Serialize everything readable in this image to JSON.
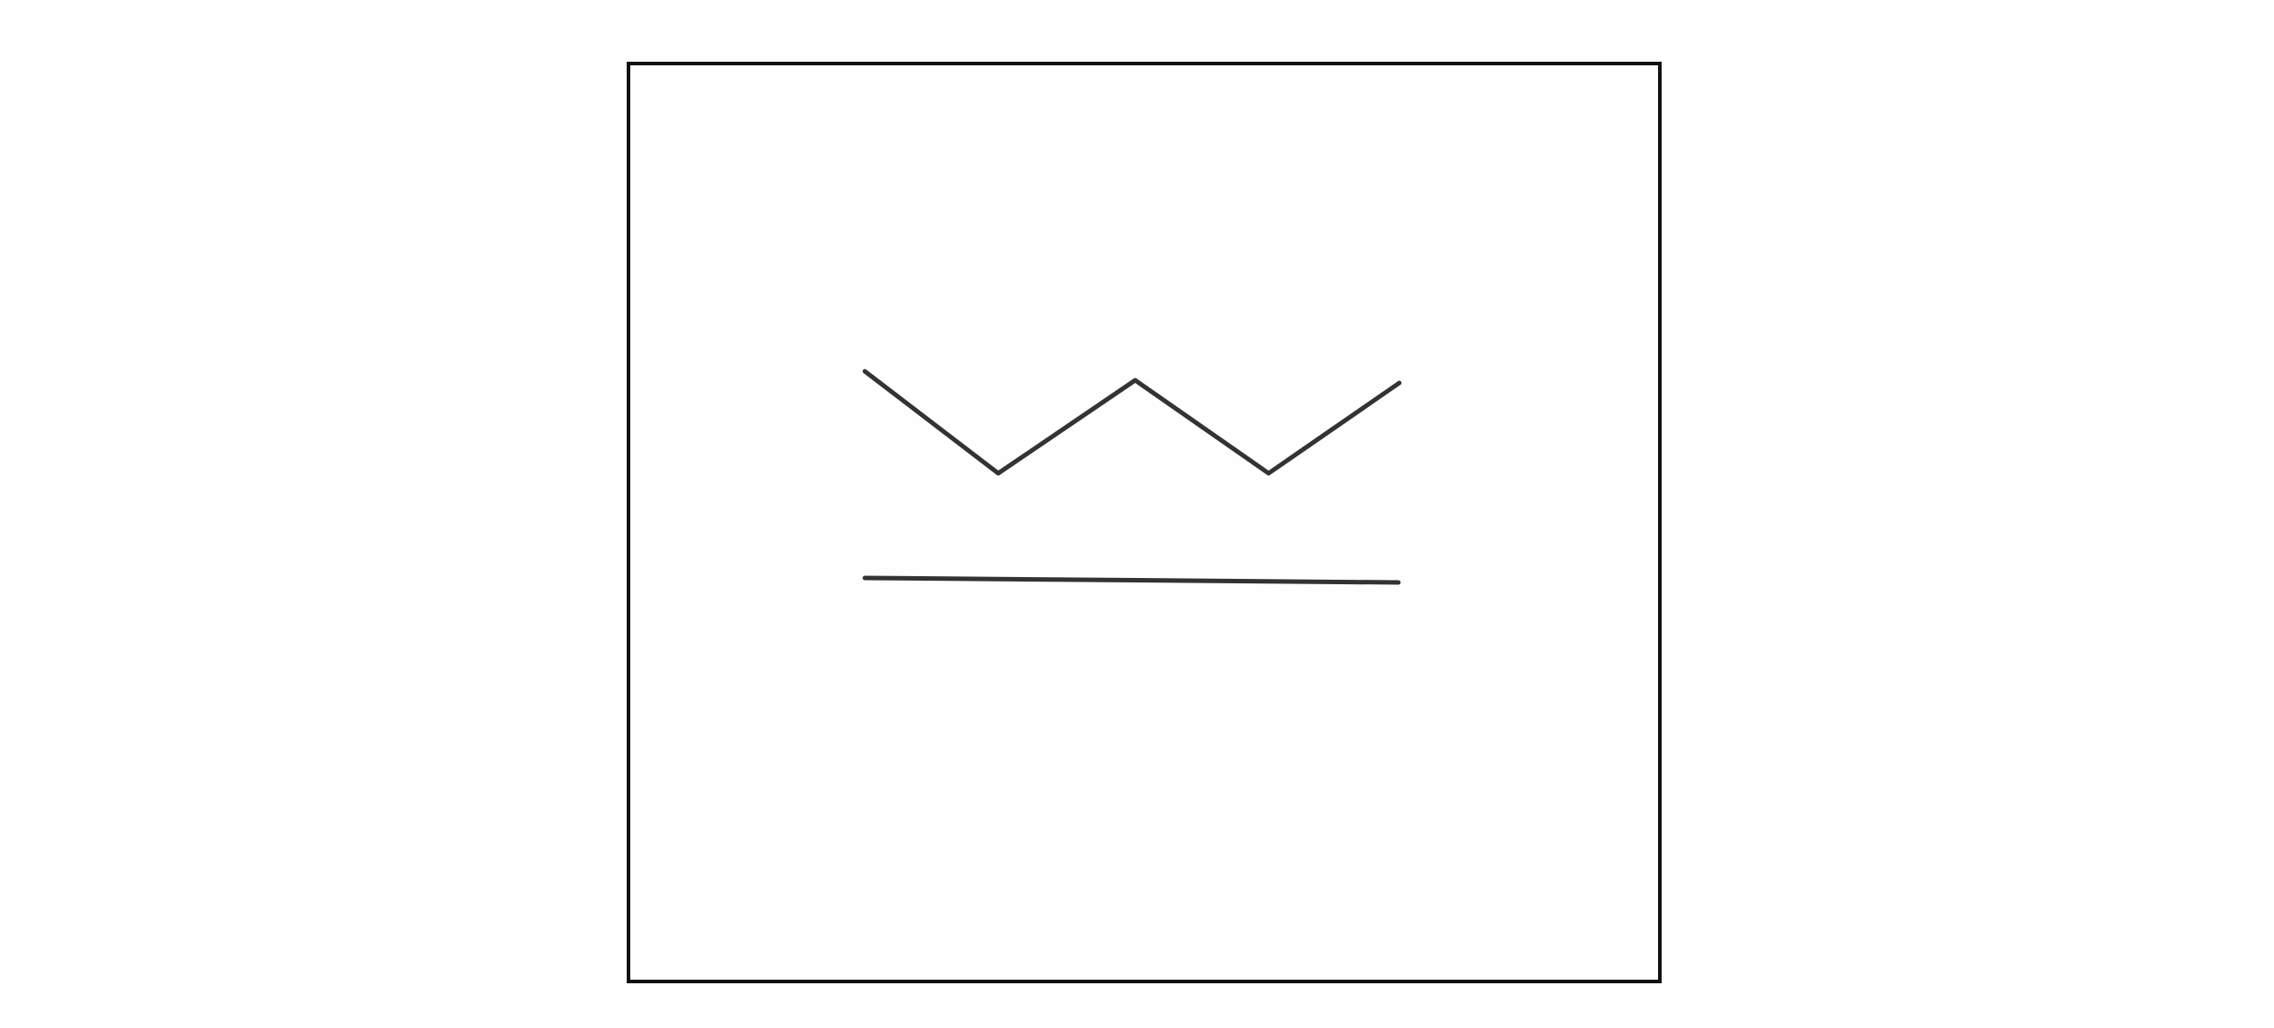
{
  "figure": {
    "stroke_color": "#333333",
    "frame_color": "#111111",
    "background_color": "#ffffff",
    "symbol": "zigzag-over-line-icon"
  }
}
